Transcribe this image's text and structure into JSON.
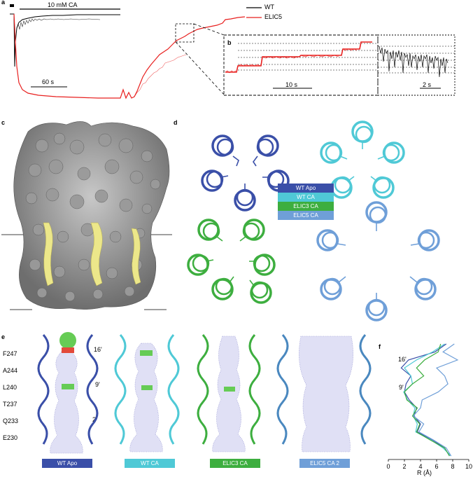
{
  "panels": {
    "a": "a",
    "b": "b",
    "c": "c",
    "d": "d",
    "e": "e",
    "f": "f"
  },
  "panel_a": {
    "bar_label": "10 mM CA",
    "time_scale": "60 s",
    "legend": [
      {
        "name": "WT",
        "color": "#000000"
      },
      {
        "name": "ELIC5",
        "color": "#e8201f"
      }
    ]
  },
  "panel_b": {
    "scale1": "10 s",
    "scale2": "2 s"
  },
  "panel_d": {
    "legend": [
      {
        "name": "WT Apo",
        "color": "#3a4fa8"
      },
      {
        "name": "WT CA",
        "color": "#4fc9d6"
      },
      {
        "name": "ELIC3 CA",
        "color": "#3dae3f"
      },
      {
        "name": "ELIC5 CA",
        "color": "#6f9fd8"
      }
    ]
  },
  "panel_e": {
    "residues": [
      "F247",
      "A244",
      "L240",
      "T237",
      "Q233",
      "E230"
    ],
    "positions": [
      "16'",
      "9'",
      "2'"
    ],
    "labels": [
      {
        "name": "WT Apo",
        "color": "#3a4fa8"
      },
      {
        "name": "WT CA",
        "color": "#4fc9d6"
      },
      {
        "name": "ELIC3 CA",
        "color": "#3dae3f"
      },
      {
        "name": "ELIC5 CA 2",
        "color": "#6f9fd8"
      }
    ]
  },
  "panel_f": {
    "ann_16": "16'",
    "ann_9": "9'",
    "xlabel": "R (Å)",
    "xticks": [
      "0",
      "2",
      "4",
      "6",
      "8",
      "10"
    ]
  },
  "chart_data": {
    "type": "line",
    "xlabel": "R (Å)",
    "xlim": [
      0,
      10
    ],
    "series": [
      {
        "name": "WT Apo",
        "color": "#3a4fa8",
        "x": [
          7.2,
          5.8,
          2.5,
          1.6,
          2.8,
          2.2,
          2.0,
          2.6,
          3.5,
          3.2,
          4.0,
          3.6,
          5.5,
          7.0,
          7.6
        ]
      },
      {
        "name": "WT CA",
        "color": "#4fc9d6",
        "x": [
          7.0,
          5.5,
          3.5,
          2.0,
          2.8,
          3.0,
          1.9,
          2.4,
          3.3,
          3.1,
          3.6,
          3.4,
          5.3,
          6.8,
          7.8
        ]
      },
      {
        "name": "ELIC3 CA",
        "color": "#3dae3f",
        "x": [
          6.5,
          6.2,
          4.5,
          3.5,
          4.4,
          3.0,
          2.0,
          2.3,
          3.6,
          3.0,
          3.9,
          3.5,
          5.2,
          7.0,
          7.6
        ]
      },
      {
        "name": "ELIC5 CA",
        "color": "#6f9fd8",
        "x": [
          8.2,
          6.8,
          8.6,
          6.0,
          7.0,
          7.4,
          6.2,
          4.2,
          4.0,
          3.1,
          4.4,
          3.8,
          5.6,
          7.2,
          7.8
        ]
      }
    ]
  }
}
